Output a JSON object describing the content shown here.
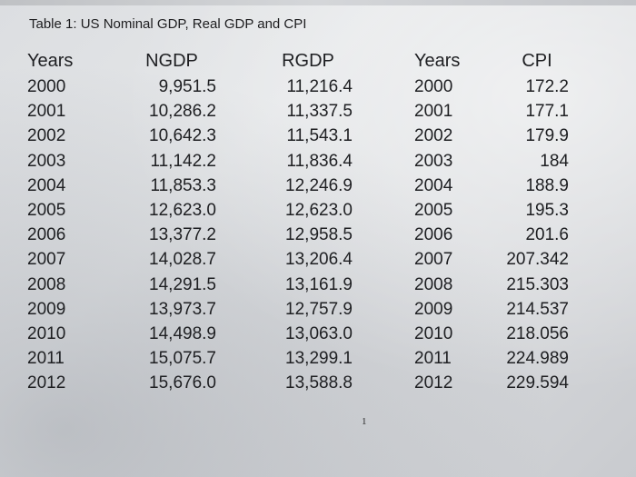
{
  "title": "Table 1: US Nominal GDP, Real GDP and CPI",
  "gdp_table": {
    "headers": {
      "years": "Years",
      "ngdp": "NGDP",
      "rgdp": "RGDP"
    },
    "rows": [
      {
        "year": "2000",
        "ngdp": "9,951.5",
        "rgdp": "11,216.4"
      },
      {
        "year": "2001",
        "ngdp": "10,286.2",
        "rgdp": "11,337.5"
      },
      {
        "year": "2002",
        "ngdp": "10,642.3",
        "rgdp": "11,543.1"
      },
      {
        "year": "2003",
        "ngdp": "11,142.2",
        "rgdp": "11,836.4"
      },
      {
        "year": "2004",
        "ngdp": "11,853.3",
        "rgdp": "12,246.9"
      },
      {
        "year": "2005",
        "ngdp": "12,623.0",
        "rgdp": "12,623.0"
      },
      {
        "year": "2006",
        "ngdp": "13,377.2",
        "rgdp": "12,958.5"
      },
      {
        "year": "2007",
        "ngdp": "14,028.7",
        "rgdp": "13,206.4"
      },
      {
        "year": "2008",
        "ngdp": "14,291.5",
        "rgdp": "13,161.9"
      },
      {
        "year": "2009",
        "ngdp": "13,973.7",
        "rgdp": "12,757.9"
      },
      {
        "year": "2010",
        "ngdp": "14,498.9",
        "rgdp": "13,063.0"
      },
      {
        "year": "2011",
        "ngdp": "15,075.7",
        "rgdp": "13,299.1"
      },
      {
        "year": "2012",
        "ngdp": "15,676.0",
        "rgdp": "13,588.8"
      }
    ]
  },
  "cpi_table": {
    "headers": {
      "years": "Years",
      "cpi": "CPI"
    },
    "rows": [
      {
        "year": "2000",
        "cpi": "172.2"
      },
      {
        "year": "2001",
        "cpi": "177.1"
      },
      {
        "year": "2002",
        "cpi": "179.9"
      },
      {
        "year": "2003",
        "cpi": "184"
      },
      {
        "year": "2004",
        "cpi": "188.9"
      },
      {
        "year": "2005",
        "cpi": "195.3"
      },
      {
        "year": "2006",
        "cpi": "201.6"
      },
      {
        "year": "2007",
        "cpi": "207.342"
      },
      {
        "year": "2008",
        "cpi": "215.303"
      },
      {
        "year": "2009",
        "cpi": "214.537"
      },
      {
        "year": "2010",
        "cpi": "218.056"
      },
      {
        "year": "2011",
        "cpi": "224.989"
      },
      {
        "year": "2012",
        "cpi": "229.594"
      }
    ]
  },
  "page_number": "1"
}
